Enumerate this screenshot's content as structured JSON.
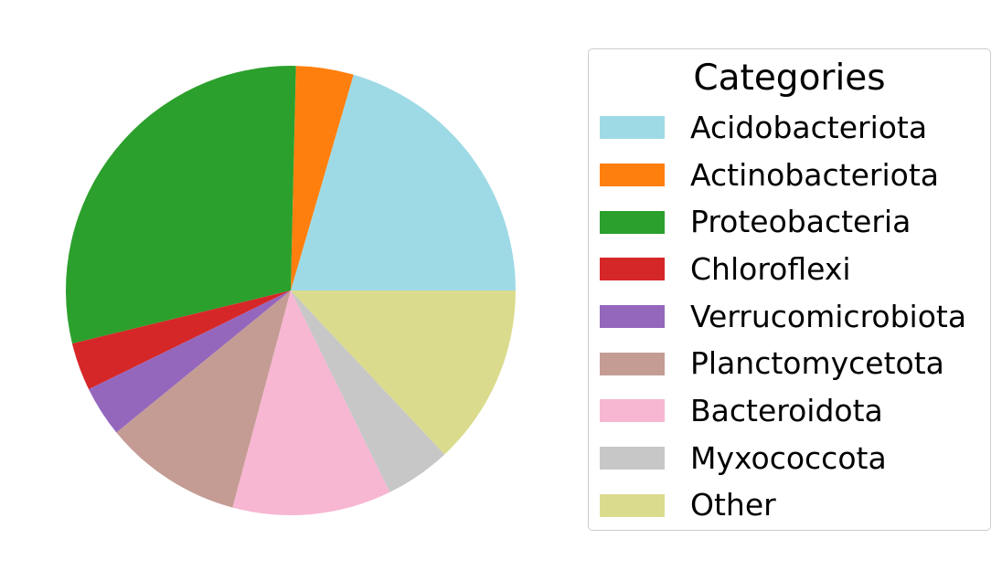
{
  "chart_data": {
    "type": "pie",
    "title": "",
    "start_angle_deg": 0,
    "direction": "counterclockwise",
    "legend_title": "Categories",
    "legend_placement": "right",
    "slices": [
      {
        "label": "Acidobacteriota",
        "value": 20.8,
        "color": "#9edae5"
      },
      {
        "label": "Actinobacteriota",
        "value": 4.2,
        "color": "#ff7f0e"
      },
      {
        "label": "Proteobacteria",
        "value": 29.6,
        "color": "#2ca02c"
      },
      {
        "label": "Chloroflexi",
        "value": 3.5,
        "color": "#d62728"
      },
      {
        "label": "Verrucomicrobiota",
        "value": 3.7,
        "color": "#9467bd"
      },
      {
        "label": "Planctomycetota",
        "value": 10.1,
        "color": "#c49c94"
      },
      {
        "label": "Bacteroidota",
        "value": 11.6,
        "color": "#f7b6d2"
      },
      {
        "label": "Myxococcota",
        "value": 4.8,
        "color": "#c7c7c7"
      },
      {
        "label": "Other",
        "value": 13.2,
        "color": "#dbdb8d"
      }
    ]
  }
}
